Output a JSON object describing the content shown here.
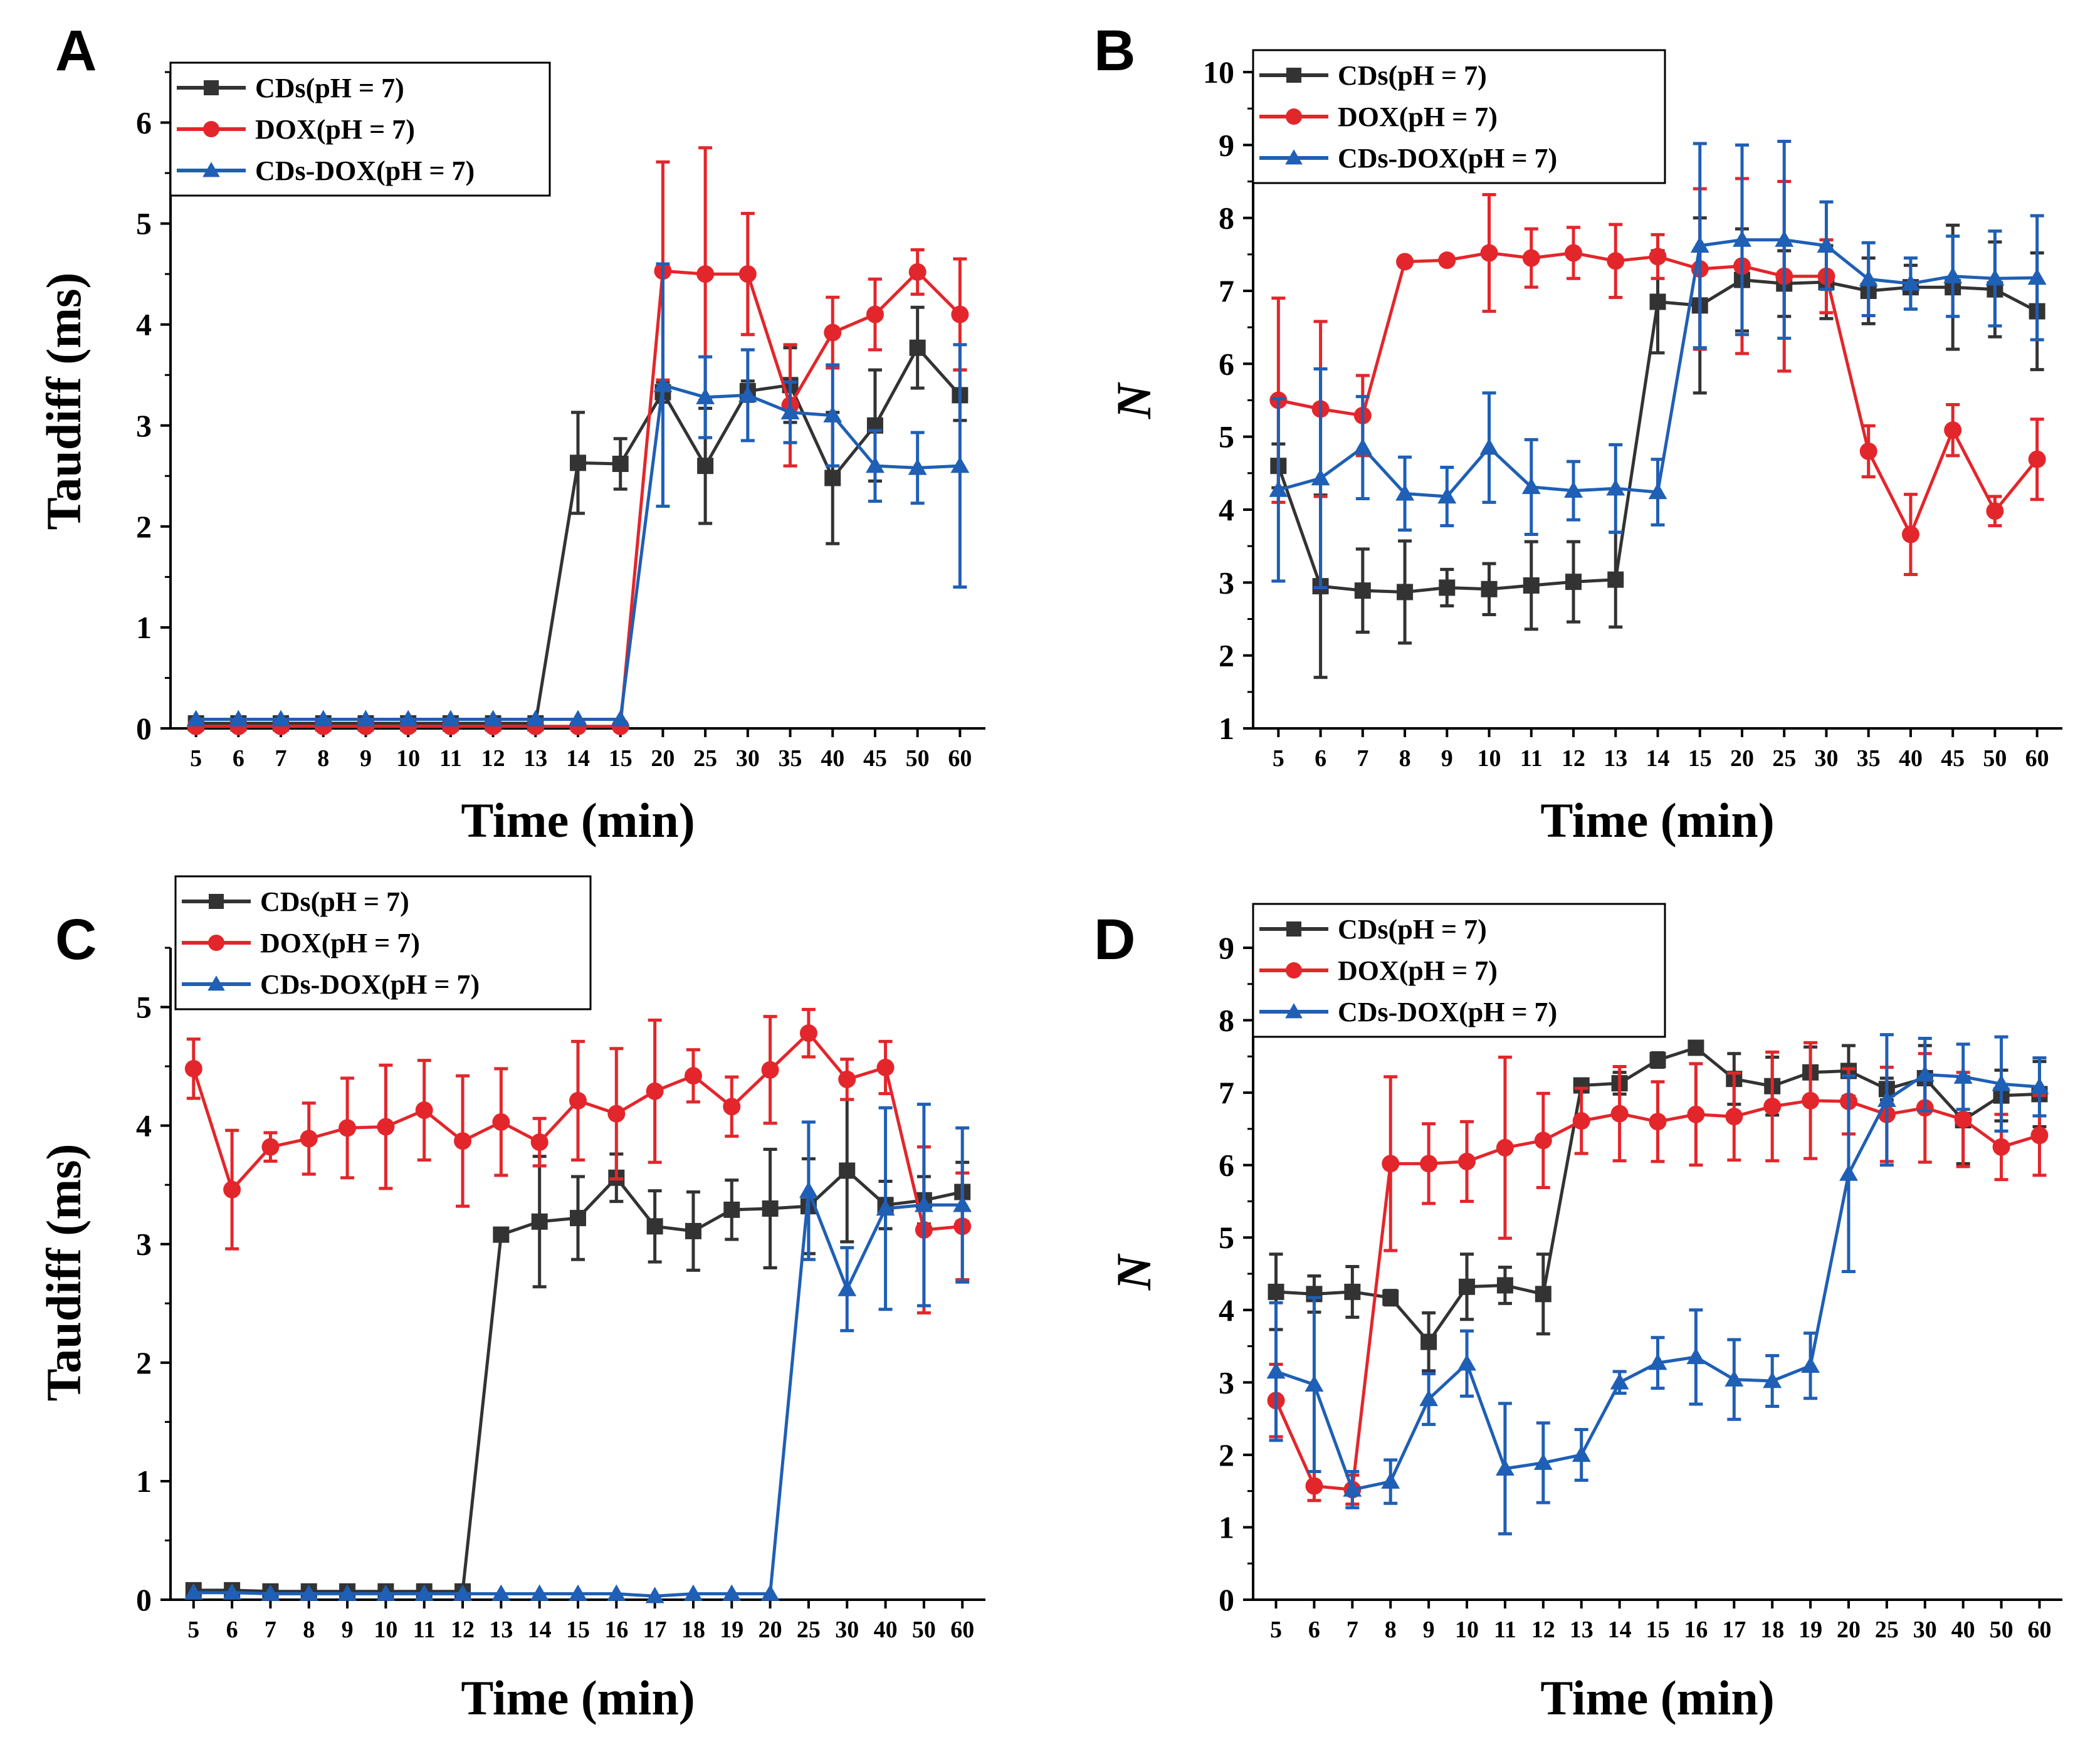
{
  "figure": {
    "colors": {
      "CDs": "#333333",
      "DOX": "#e3262b",
      "CDs-DOX": "#1f5fb5",
      "axis": "#000000"
    }
  },
  "chart_data": [
    {
      "panel": "A",
      "type": "line",
      "xlabel": "Time (min)",
      "ylabel": "Taudiff (ms)",
      "ylabel_italic": false,
      "ylim": [
        0,
        6.5
      ],
      "yticks": [
        0,
        1,
        2,
        3,
        4,
        5,
        6
      ],
      "categories": [
        "5",
        "6",
        "7",
        "8",
        "9",
        "10",
        "11",
        "12",
        "13",
        "14",
        "15",
        "20",
        "25",
        "30",
        "35",
        "40",
        "45",
        "50",
        "60"
      ],
      "series": [
        {
          "name": "CDs(pH = 7)",
          "key": "CDs",
          "marker": "square",
          "values": [
            0.05,
            0.05,
            0.05,
            0.05,
            0.05,
            0.05,
            0.05,
            0.05,
            0.05,
            2.63,
            2.62,
            3.33,
            2.6,
            3.34,
            3.4,
            2.48,
            3.0,
            3.77,
            3.3
          ],
          "errors": [
            0.02,
            0.02,
            0.02,
            0.02,
            0.02,
            0.02,
            0.02,
            0.02,
            0.02,
            0.5,
            0.25,
            0.1,
            0.57,
            0.1,
            0.37,
            0.65,
            0.55,
            0.4,
            0.25
          ]
        },
        {
          "name": "DOX(pH = 7)",
          "key": "DOX",
          "marker": "circle",
          "values": [
            0.02,
            0.02,
            0.02,
            0.02,
            0.02,
            0.02,
            0.02,
            0.02,
            0.02,
            0.02,
            0.02,
            4.53,
            4.5,
            4.5,
            3.2,
            3.92,
            4.1,
            4.52,
            4.1
          ],
          "errors": [
            0.01,
            0.01,
            0.01,
            0.01,
            0.01,
            0.01,
            0.01,
            0.01,
            0.01,
            0.01,
            0.01,
            1.08,
            1.25,
            0.6,
            0.6,
            0.35,
            0.35,
            0.22,
            0.55
          ]
        },
        {
          "name": "CDs-DOX(pH = 7)",
          "key": "CDs-DOX",
          "marker": "triangle",
          "values": [
            0.09,
            0.09,
            0.09,
            0.09,
            0.09,
            0.09,
            0.09,
            0.09,
            0.09,
            0.09,
            0.09,
            3.4,
            3.28,
            3.3,
            3.13,
            3.1,
            2.6,
            2.58,
            2.6
          ],
          "errors": [
            0.02,
            0.02,
            0.02,
            0.02,
            0.02,
            0.02,
            0.02,
            0.02,
            0.02,
            0.02,
            0.02,
            1.2,
            0.4,
            0.45,
            0.3,
            0.5,
            0.35,
            0.35,
            1.2
          ]
        }
      ]
    },
    {
      "panel": "B",
      "type": "line",
      "xlabel": "Time (min)",
      "ylabel": "N",
      "ylabel_italic": true,
      "ylim": [
        1,
        10
      ],
      "yticks": [
        1,
        2,
        3,
        4,
        5,
        6,
        7,
        8,
        9,
        10
      ],
      "categories": [
        "5",
        "6",
        "7",
        "8",
        "9",
        "10",
        "11",
        "12",
        "13",
        "14",
        "15",
        "20",
        "25",
        "30",
        "35",
        "40",
        "45",
        "50",
        "60"
      ],
      "series": [
        {
          "name": "CDs(pH = 7)",
          "key": "CDs",
          "marker": "square",
          "values": [
            4.6,
            2.95,
            2.89,
            2.87,
            2.93,
            2.91,
            2.96,
            3.01,
            3.04,
            6.85,
            6.8,
            7.15,
            7.1,
            7.12,
            7.0,
            7.05,
            7.05,
            7.02,
            6.72
          ],
          "errors": [
            0.3,
            1.25,
            0.57,
            0.7,
            0.25,
            0.35,
            0.6,
            0.55,
            0.65,
            0.7,
            1.2,
            0.7,
            0.45,
            0.5,
            0.45,
            0.3,
            0.85,
            0.65,
            0.8
          ]
        },
        {
          "name": "DOX(pH = 7)",
          "key": "DOX",
          "marker": "circle",
          "values": [
            5.5,
            5.38,
            5.29,
            7.4,
            7.42,
            7.52,
            7.45,
            7.52,
            7.41,
            7.47,
            7.3,
            7.34,
            7.2,
            7.2,
            4.8,
            3.66,
            5.09,
            3.98,
            4.69
          ],
          "errors": [
            1.4,
            1.2,
            0.55,
            0.05,
            0.05,
            0.8,
            0.4,
            0.35,
            0.5,
            0.3,
            1.1,
            1.2,
            1.3,
            0.5,
            0.35,
            0.55,
            0.35,
            0.2,
            0.55
          ]
        },
        {
          "name": "CDs-DOX(pH = 7)",
          "key": "CDs-DOX",
          "marker": "triangle",
          "values": [
            4.27,
            4.43,
            4.85,
            4.22,
            4.18,
            4.85,
            4.31,
            4.26,
            4.29,
            4.24,
            7.62,
            7.7,
            7.7,
            7.62,
            7.16,
            7.1,
            7.2,
            7.17,
            7.18
          ],
          "errors": [
            1.25,
            1.5,
            0.7,
            0.5,
            0.4,
            0.75,
            0.65,
            0.4,
            0.6,
            0.45,
            1.4,
            1.3,
            1.35,
            0.6,
            0.5,
            0.35,
            0.55,
            0.65,
            0.85
          ]
        }
      ]
    },
    {
      "panel": "C",
      "type": "line",
      "xlabel": "Time (min)",
      "ylabel": "Taudiff (ms)",
      "ylabel_italic": false,
      "ylim": [
        0,
        5.5
      ],
      "yticks": [
        0,
        1,
        2,
        3,
        4,
        5
      ],
      "categories": [
        "5",
        "6",
        "7",
        "8",
        "9",
        "10",
        "11",
        "12",
        "13",
        "14",
        "15",
        "16",
        "17",
        "18",
        "19",
        "20",
        "25",
        "30",
        "40",
        "50",
        "60"
      ],
      "series": [
        {
          "name": "CDs(pH = 7)",
          "key": "CDs",
          "marker": "square",
          "values": [
            0.08,
            0.08,
            0.07,
            0.07,
            0.07,
            0.07,
            0.07,
            0.07,
            3.08,
            3.19,
            3.22,
            3.56,
            3.15,
            3.11,
            3.29,
            3.3,
            3.32,
            3.62,
            3.33,
            3.37,
            3.44
          ],
          "errors": [
            0.02,
            0.02,
            0.02,
            0.02,
            0.02,
            0.02,
            0.02,
            0.02,
            0.02,
            0.55,
            0.35,
            0.2,
            0.3,
            0.33,
            0.25,
            0.5,
            0.4,
            0.6,
            0.2,
            0.2,
            0.25
          ]
        },
        {
          "name": "DOX(pH = 7)",
          "key": "DOX",
          "marker": "circle",
          "values": [
            4.48,
            3.46,
            3.82,
            3.89,
            3.98,
            3.99,
            4.13,
            3.87,
            4.03,
            3.86,
            4.21,
            4.1,
            4.29,
            4.42,
            4.16,
            4.47,
            4.78,
            4.39,
            4.49,
            3.12,
            3.15
          ],
          "errors": [
            0.25,
            0.5,
            0.12,
            0.3,
            0.42,
            0.52,
            0.42,
            0.55,
            0.45,
            0.2,
            0.5,
            0.55,
            0.6,
            0.22,
            0.25,
            0.45,
            0.2,
            0.17,
            0.22,
            0.7,
            0.45
          ]
        },
        {
          "name": "CDs-DOX(pH = 7)",
          "key": "CDs-DOX",
          "marker": "triangle",
          "values": [
            0.06,
            0.06,
            0.05,
            0.05,
            0.05,
            0.05,
            0.05,
            0.05,
            0.05,
            0.05,
            0.05,
            0.05,
            0.03,
            0.05,
            0.05,
            0.05,
            3.45,
            2.62,
            3.3,
            3.33,
            3.33
          ],
          "errors": [
            0.01,
            0.01,
            0.01,
            0.01,
            0.01,
            0.01,
            0.01,
            0.01,
            0.01,
            0.01,
            0.01,
            0.01,
            0.01,
            0.01,
            0.01,
            0.01,
            0.58,
            0.35,
            0.85,
            0.85,
            0.65
          ]
        }
      ]
    },
    {
      "panel": "D",
      "type": "line",
      "xlabel": "Time (min)",
      "ylabel": "N",
      "ylabel_italic": true,
      "ylim": [
        0,
        9
      ],
      "yticks": [
        0,
        1,
        2,
        3,
        4,
        5,
        6,
        7,
        8,
        9
      ],
      "categories": [
        "5",
        "6",
        "7",
        "8",
        "9",
        "10",
        "11",
        "12",
        "13",
        "14",
        "15",
        "16",
        "17",
        "18",
        "19",
        "20",
        "25",
        "30",
        "40",
        "50",
        "60"
      ],
      "series": [
        {
          "name": "CDs(pH = 7)",
          "key": "CDs",
          "marker": "square",
          "values": [
            4.25,
            4.22,
            4.25,
            4.17,
            3.56,
            4.32,
            4.34,
            4.22,
            7.1,
            7.13,
            7.45,
            7.62,
            7.19,
            7.09,
            7.28,
            7.3,
            7.05,
            7.2,
            6.62,
            6.96,
            6.98
          ],
          "errors": [
            0.52,
            0.25,
            0.35,
            0.1,
            0.4,
            0.45,
            0.25,
            0.55,
            0.05,
            0.15,
            0.1,
            0.05,
            0.35,
            0.4,
            0.35,
            0.35,
            0.15,
            0.45,
            0.6,
            0.35,
            0.45
          ]
        },
        {
          "name": "DOX(pH = 7)",
          "key": "DOX",
          "marker": "circle",
          "values": [
            2.75,
            1.57,
            1.52,
            6.02,
            6.02,
            6.05,
            6.24,
            6.34,
            6.61,
            6.71,
            6.6,
            6.7,
            6.67,
            6.81,
            6.89,
            6.88,
            6.7,
            6.79,
            6.63,
            6.25,
            6.41
          ],
          "errors": [
            0.5,
            0.2,
            0.2,
            1.2,
            0.55,
            0.55,
            1.25,
            0.65,
            0.45,
            0.65,
            0.55,
            0.7,
            0.6,
            0.75,
            0.8,
            0.45,
            0.65,
            0.75,
            0.65,
            0.45,
            0.55
          ]
        },
        {
          "name": "CDs-DOX(pH = 7)",
          "key": "CDs-DOX",
          "marker": "triangle",
          "values": [
            3.15,
            2.97,
            1.52,
            1.63,
            2.77,
            3.26,
            1.81,
            1.89,
            2.0,
            3.0,
            3.27,
            3.35,
            3.04,
            3.02,
            3.23,
            5.88,
            6.9,
            7.25,
            7.22,
            7.12,
            7.08
          ],
          "errors": [
            0.95,
            1.2,
            0.25,
            0.3,
            0.35,
            0.45,
            0.9,
            0.55,
            0.35,
            0.15,
            0.35,
            0.65,
            0.55,
            0.35,
            0.45,
            1.35,
            0.9,
            0.5,
            0.45,
            0.65,
            0.4
          ]
        }
      ]
    }
  ]
}
